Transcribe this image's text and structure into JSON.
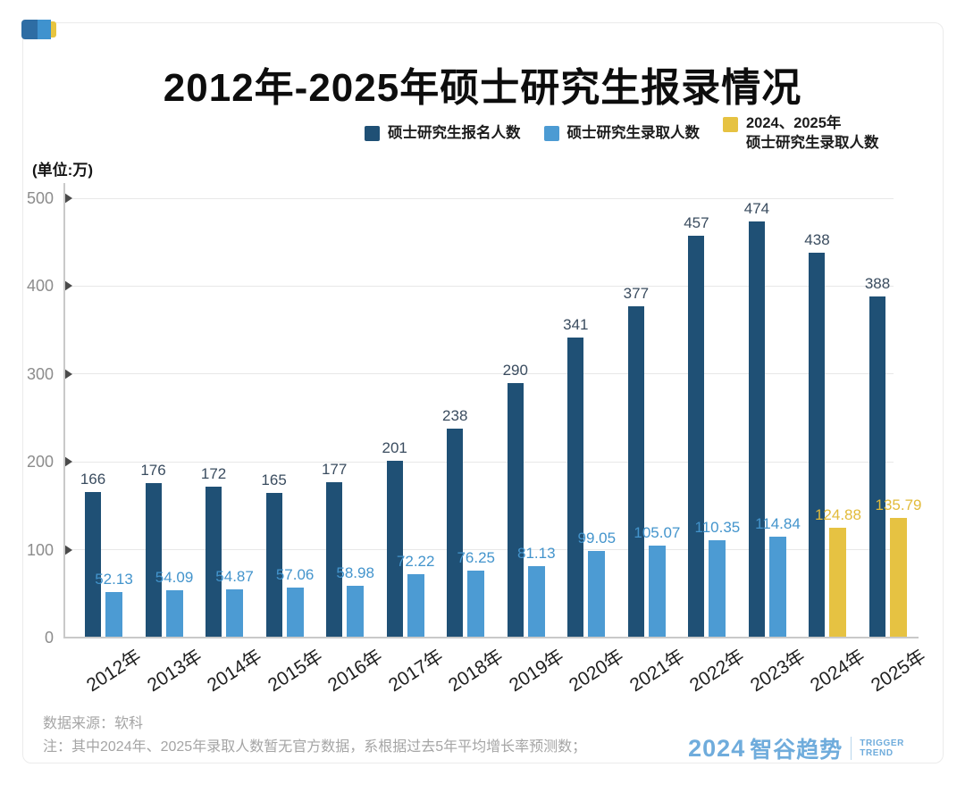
{
  "header": {
    "title": "2012年-2025年硕士研究生报录情况"
  },
  "legend": {
    "items": [
      {
        "label_lines": [
          "硕士研究生报名人数"
        ],
        "color": "#1f5075"
      },
      {
        "label_lines": [
          "硕士研究生录取人数"
        ],
        "color": "#4c9bd3"
      },
      {
        "label_lines": [
          "2024、2025年",
          "硕士研究生录取人数"
        ],
        "color": "#e6c242"
      }
    ]
  },
  "chart_data": {
    "type": "bar",
    "title": "2012年-2025年硕士研究生报录情况",
    "unit_label": "(单位:万)",
    "categories": [
      "2012年",
      "2013年",
      "2014年",
      "2015年",
      "2016年",
      "2017年",
      "2018年",
      "2019年",
      "2020年",
      "2021年",
      "2022年",
      "2023年",
      "2024年",
      "2025年"
    ],
    "series": [
      {
        "name": "硕士研究生报名人数",
        "color": "#1f5075",
        "label_color": "#3a4c5f",
        "values": [
          166,
          176,
          172,
          165,
          177,
          201,
          238,
          290,
          341,
          377,
          457,
          474,
          438,
          388
        ]
      },
      {
        "name": "硕士研究生录取人数",
        "color": "#4c9bd3",
        "label_color": "#4394cc",
        "predicted_color": "#e6c242",
        "predicted_label_color": "#e2bb3a",
        "predicted_name": "2024、2025年硕士研究生录取人数",
        "predicted_from_index": 12,
        "values": [
          52.13,
          54.09,
          54.87,
          57.06,
          58.98,
          72.22,
          76.25,
          81.13,
          99.05,
          105.07,
          110.35,
          114.84,
          124.88,
          135.79
        ]
      }
    ],
    "ylim": [
      0,
      500
    ],
    "yticks": [
      0,
      100,
      200,
      300,
      400,
      500
    ],
    "grid": true,
    "legend_position": "top"
  },
  "footer": {
    "source": "数据来源：软科",
    "note": "注：其中2024年、2025年录取人数暂无官方数据，系根据过去5年平均增长率预测数；"
  },
  "brand": {
    "year": "2024",
    "name": "智谷趋势",
    "tagline_line1": "TRIGGER",
    "tagline_line2": "TREND",
    "color": "#6facdc",
    "accent_colors": {
      "navy": "#2e6da4",
      "blue": "#3f92ce",
      "gold": "#e8c53f"
    }
  }
}
